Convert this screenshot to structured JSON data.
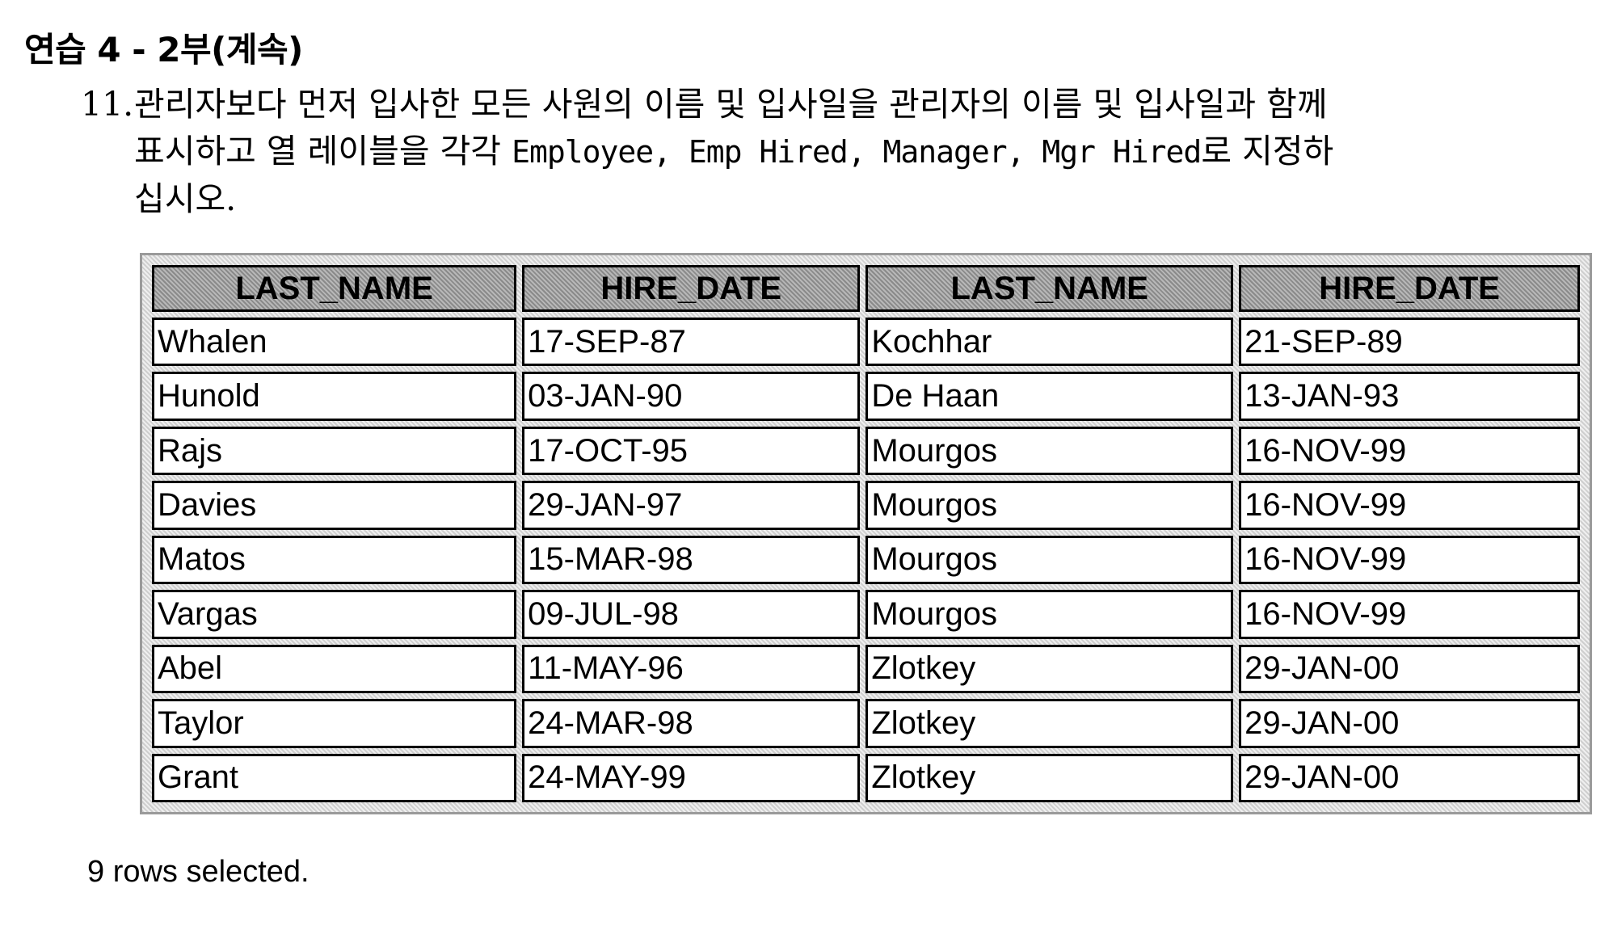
{
  "heading": "연습 4 - 2부(계속)",
  "question": {
    "number": "11.",
    "line1": "관리자보다 먼저 입사한 모든 사원의 이름 및 입사일을 관리자의 이름 및 입사일과 함께",
    "line2_prefix": "표시하고 열 레이블을 각각 ",
    "line2_labels": "Employee, Emp Hired, Manager, Mgr Hired",
    "line2_suffix": "로 지정하",
    "line3": "십시오."
  },
  "table": {
    "headers": [
      "LAST_NAME",
      "HIRE_DATE",
      "LAST_NAME",
      "HIRE_DATE"
    ],
    "rows": [
      [
        "Whalen",
        "17-SEP-87",
        "Kochhar",
        "21-SEP-89"
      ],
      [
        "Hunold",
        "03-JAN-90",
        "De Haan",
        "13-JAN-93"
      ],
      [
        "Rajs",
        "17-OCT-95",
        "Mourgos",
        "16-NOV-99"
      ],
      [
        "Davies",
        "29-JAN-97",
        "Mourgos",
        "16-NOV-99"
      ],
      [
        "Matos",
        "15-MAR-98",
        "Mourgos",
        "16-NOV-99"
      ],
      [
        "Vargas",
        "09-JUL-98",
        "Mourgos",
        "16-NOV-99"
      ],
      [
        "Abel",
        "11-MAY-96",
        "Zlotkey",
        "29-JAN-00"
      ],
      [
        "Taylor",
        "24-MAR-98",
        "Zlotkey",
        "29-JAN-00"
      ],
      [
        "Grant",
        "24-MAY-99",
        "Zlotkey",
        "29-JAN-00"
      ]
    ]
  },
  "footer": "9 rows selected."
}
